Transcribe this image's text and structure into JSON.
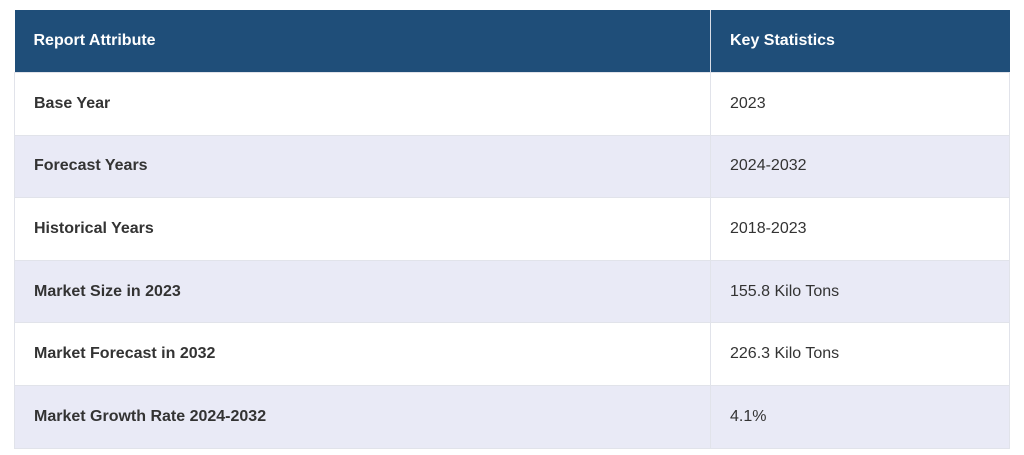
{
  "table": {
    "header": [
      "Report Attribute",
      "Key Statistics"
    ],
    "rows": [
      [
        "Base Year",
        "2023"
      ],
      [
        "Forecast Years",
        "2024-2032"
      ],
      [
        "Historical Years",
        "2018-2023"
      ],
      [
        "Market Size in 2023",
        "155.8 Kilo Tons"
      ],
      [
        "Market Forecast in 2032",
        "226.3 Kilo Tons"
      ],
      [
        "Market Growth Rate 2024-2032",
        "4.1%"
      ]
    ]
  }
}
